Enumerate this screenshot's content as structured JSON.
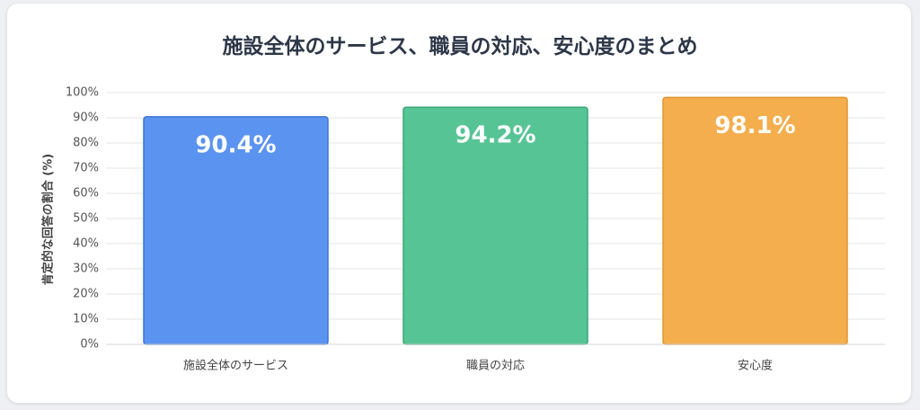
{
  "chart_data": {
    "type": "bar",
    "title": "施設全体のサービス、職員の対応、安心度のまとめ",
    "ylabel": "肯定的な回答の割合 (%)",
    "xlabel": "",
    "ylim": [
      0,
      100
    ],
    "ytick_step": 10,
    "ytick_suffix": "%",
    "grid": true,
    "legend": "none",
    "categories": [
      "施設全体のサービス",
      "職員の対応",
      "安心度"
    ],
    "values": [
      90.4,
      94.2,
      98.1
    ],
    "data_labels": [
      "90.4%",
      "94.2%",
      "98.1%"
    ],
    "colors": [
      "#5b93f0",
      "#57c495",
      "#f5ae4e"
    ],
    "border_colors": [
      "#3c75d6",
      "#38a878",
      "#e0952f"
    ]
  }
}
